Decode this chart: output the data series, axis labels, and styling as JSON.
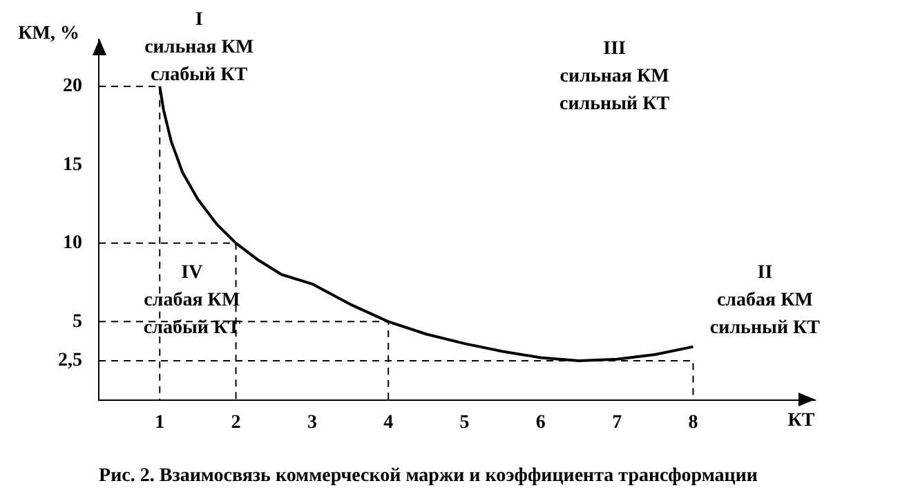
{
  "chart_data": {
    "type": "line",
    "title": "Рис. 2. Взаимосвязь коммерческой маржи и коэффициента трансформации",
    "xlabel": "КТ",
    "ylabel": "КМ, %",
    "xlim": [
      0.2,
      9.6
    ],
    "xticks": [
      1,
      2,
      3,
      4,
      5,
      6,
      7,
      8
    ],
    "ylim": [
      0,
      23
    ],
    "yticks": [
      {
        "value": 2.5,
        "label": "2,5"
      },
      5,
      10,
      15,
      20
    ],
    "grid": false,
    "legend": false,
    "marker": "none",
    "series": [
      {
        "type": "line",
        "color": "#000000",
        "line_style": "solid",
        "x": [
          1,
          1.05,
          1.15,
          1.3,
          1.5,
          1.75,
          2,
          2.3,
          2.6,
          3,
          3.5,
          4,
          4.5,
          5,
          5.5,
          6,
          6.5,
          7,
          7.5,
          8
        ],
        "values": [
          20,
          18.5,
          16.5,
          14.5,
          12.8,
          11.2,
          10,
          8.9,
          8,
          7.4,
          6.1,
          5,
          4.2,
          3.6,
          3.1,
          2.7,
          2.5,
          2.6,
          2.9,
          3.4
        ]
      },
      {
        "type": "line",
        "color": "#000000",
        "line_style": "dashed",
        "x": [
          0.2,
          1,
          1,
          1
        ],
        "values": [
          20,
          20,
          18,
          0
        ]
      },
      {
        "type": "line",
        "color": "#000000",
        "line_style": "dashed",
        "x": [
          0.2,
          2,
          2
        ],
        "values": [
          10,
          10,
          0
        ]
      },
      {
        "type": "line",
        "color": "#000000",
        "line_style": "dashed",
        "x": [
          0.2,
          4,
          4
        ],
        "values": [
          5,
          5,
          0
        ]
      },
      {
        "type": "line",
        "color": "#000000",
        "line_style": "dashed",
        "x": [
          0.2,
          8,
          8
        ],
        "values": [
          2.5,
          2.5,
          0
        ]
      }
    ],
    "annotations": [
      "I\nсильная КМ\nслабый КТ",
      "III\nсильная КМ\nсильный КТ",
      "IV\nслабая КМ\nслабый КТ",
      "II\nслабая КМ\nсильный КТ"
    ]
  }
}
